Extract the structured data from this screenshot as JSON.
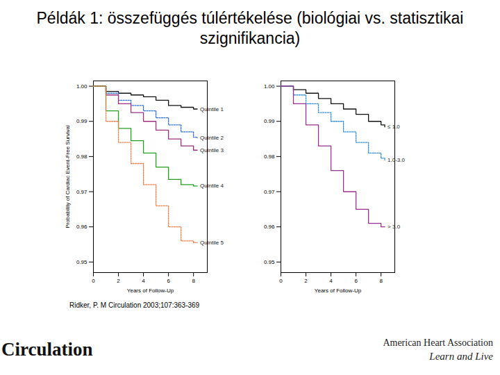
{
  "page": {
    "title": "Példák 1: összefüggés túlértékelése (biológiai vs. statisztikai szignifikancia)",
    "citation": "Ridker, P. M Circulation 2003;107:363-369",
    "journal": "Circulation",
    "organization": "American Heart Association",
    "slogan": "Learn and Live"
  },
  "chart_data": [
    {
      "type": "line",
      "x_label": "Years of Follow-Up",
      "y_label": "Probability of Cardiac Event-Free Survival",
      "xlim": [
        0,
        9.1
      ],
      "xticks": [
        0,
        2,
        4,
        6,
        8
      ],
      "ylim": [
        0.947,
        1.0015
      ],
      "yticks": [
        {
          "value": 1,
          "label": "1.00"
        },
        {
          "value": 0.99,
          "label": "0.99"
        },
        {
          "value": 0.98,
          "label": "0.98"
        },
        {
          "value": 0.97,
          "label": "0.97"
        },
        {
          "value": 0.96,
          "label": "0.96"
        },
        {
          "value": 0.95,
          "label": "0.95"
        }
      ],
      "grid": false,
      "x": [
        0,
        1,
        2,
        3,
        4,
        5,
        6,
        7,
        8,
        8.3
      ],
      "series": [
        {
          "name": "Quintile 1",
          "color": "#111111",
          "line_style": "solid",
          "values": [
            1,
            0.9985,
            0.998,
            0.9975,
            0.997,
            0.996,
            0.9945,
            0.994,
            0.9935,
            0.9935
          ]
        },
        {
          "name": "Quintile 2",
          "color": "#2f6fd6",
          "line_style": "dotted",
          "values": [
            1,
            0.998,
            0.996,
            0.9945,
            0.993,
            0.991,
            0.989,
            0.987,
            0.9855,
            0.9853
          ]
        },
        {
          "name": "Quintile 3",
          "color": "#a0307f",
          "line_style": "solid",
          "values": [
            1,
            0.9975,
            0.995,
            0.9925,
            0.99,
            0.9875,
            0.985,
            0.983,
            0.9818,
            0.9818
          ]
        },
        {
          "name": "Quintile 4",
          "color": "#22a022",
          "line_style": "solid",
          "values": [
            1,
            0.993,
            0.988,
            0.9845,
            0.981,
            0.977,
            0.9735,
            0.972,
            0.9716,
            0.9716
          ]
        },
        {
          "name": "Quintile 5",
          "color": "#f0804a",
          "line_style": "dotted",
          "values": [
            1,
            0.99,
            0.984,
            0.978,
            0.972,
            0.966,
            0.96,
            0.956,
            0.9555,
            0.9555
          ]
        }
      ]
    },
    {
      "type": "line",
      "x_label": "Years of Follow-Up",
      "xlim": [
        0,
        9.1
      ],
      "xticks": [
        0,
        2,
        4,
        6,
        8
      ],
      "ylim": [
        0.947,
        1.0015
      ],
      "yticks": [
        {
          "value": 1,
          "label": "1.00"
        },
        {
          "value": 0.99,
          "label": "0.99"
        },
        {
          "value": 0.98,
          "label": "0.98"
        },
        {
          "value": 0.97,
          "label": "0.97"
        },
        {
          "value": 0.96,
          "label": "0.96"
        },
        {
          "value": 0.95,
          "label": "0.95"
        }
      ],
      "grid": false,
      "x": [
        0,
        1,
        2,
        3,
        4,
        5,
        6,
        7,
        8,
        8.3
      ],
      "series": [
        {
          "name": "≤ 1.0",
          "color": "#111111",
          "line_style": "solid",
          "values": [
            1,
            0.999,
            0.998,
            0.9965,
            0.995,
            0.9935,
            0.992,
            0.99,
            0.989,
            0.9884
          ]
        },
        {
          "name": "1.0-3.0",
          "color": "#2f8fd6",
          "line_style": "dotted",
          "values": [
            1,
            0.9975,
            0.995,
            0.9925,
            0.99,
            0.987,
            0.984,
            0.981,
            0.9795,
            0.979
          ]
        },
        {
          "name": "> 3.0",
          "color": "#9a2f8f",
          "line_style": "solid",
          "values": [
            1,
            0.995,
            0.989,
            0.983,
            0.976,
            0.97,
            0.965,
            0.961,
            0.96,
            0.96
          ]
        }
      ]
    }
  ]
}
